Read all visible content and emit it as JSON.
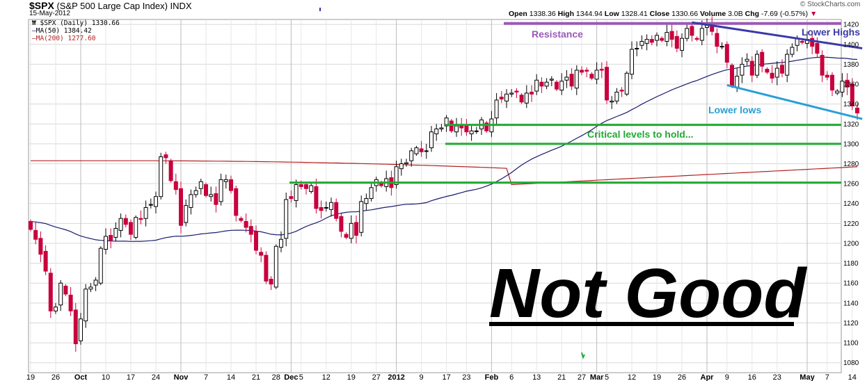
{
  "header": {
    "symbol": "$SPX",
    "name": "(S&P 500 Large Cap Index)",
    "exchange": "INDX",
    "date": "15-May-2012",
    "source": "© StockCharts.com",
    "ohlc": {
      "open_label": "Open",
      "open": "1338.36",
      "high_label": "High",
      "high": "1344.94",
      "low_label": "Low",
      "low": "1328.41",
      "close_label": "Close",
      "close": "1330.66",
      "volume_label": "Volume",
      "volume": "3.0B",
      "chg_label": "Chg",
      "chg": "-7.69 (-0.57%)"
    }
  },
  "legend": {
    "price": "$SPX (Daily) 1330.66",
    "ma50": "MA(50) 1384.42",
    "ma200": "MA(200) 1277.60"
  },
  "annotations": {
    "resistance": "Resistance",
    "lower_highs": "Lower Highs",
    "lower_lows": "Lower lows",
    "critical": "Critical levels to hold...",
    "verdict": "Not Good"
  },
  "colors": {
    "up": "#000000",
    "down": "#c8003c",
    "ma50": "#1a1a6e",
    "ma200": "#b22222",
    "resistance": "#9b59b6",
    "lower_highs": "#3a3aa8",
    "lower_lows": "#2a9fd6",
    "critical": "#22aa33",
    "grid": "#d8d8d8"
  },
  "chart_data": {
    "type": "candlestick",
    "y_axis": {
      "min": 1070,
      "max": 1425,
      "ticks": [
        1080,
        1100,
        1120,
        1140,
        1160,
        1180,
        1200,
        1220,
        1240,
        1260,
        1280,
        1300,
        1320,
        1340,
        1360,
        1380,
        1400,
        1420
      ]
    },
    "x_axis_labels": [
      {
        "label": "19",
        "bold": false,
        "i": 0
      },
      {
        "label": "26",
        "bold": false,
        "i": 5
      },
      {
        "label": "Oct",
        "bold": true,
        "i": 10
      },
      {
        "label": "10",
        "bold": false,
        "i": 15
      },
      {
        "label": "17",
        "bold": false,
        "i": 20
      },
      {
        "label": "24",
        "bold": false,
        "i": 25
      },
      {
        "label": "Nov",
        "bold": true,
        "i": 30
      },
      {
        "label": "7",
        "bold": false,
        "i": 35
      },
      {
        "label": "14",
        "bold": false,
        "i": 40
      },
      {
        "label": "21",
        "bold": false,
        "i": 45
      },
      {
        "label": "28",
        "bold": false,
        "i": 49
      },
      {
        "label": "Dec",
        "bold": true,
        "i": 52
      },
      {
        "label": "5",
        "bold": false,
        "i": 54
      },
      {
        "label": "12",
        "bold": false,
        "i": 59
      },
      {
        "label": "19",
        "bold": false,
        "i": 64
      },
      {
        "label": "27",
        "bold": false,
        "i": 69
      },
      {
        "label": "2012",
        "bold": true,
        "i": 73
      },
      {
        "label": "9",
        "bold": false,
        "i": 78
      },
      {
        "label": "17",
        "bold": false,
        "i": 83
      },
      {
        "label": "23",
        "bold": false,
        "i": 87
      },
      {
        "label": "Feb",
        "bold": true,
        "i": 92
      },
      {
        "label": "6",
        "bold": false,
        "i": 96
      },
      {
        "label": "13",
        "bold": false,
        "i": 101
      },
      {
        "label": "21",
        "bold": false,
        "i": 106
      },
      {
        "label": "27",
        "bold": false,
        "i": 110
      },
      {
        "label": "Mar",
        "bold": true,
        "i": 113
      },
      {
        "label": "5",
        "bold": false,
        "i": 115
      },
      {
        "label": "12",
        "bold": false,
        "i": 120
      },
      {
        "label": "19",
        "bold": false,
        "i": 125
      },
      {
        "label": "26",
        "bold": false,
        "i": 130
      },
      {
        "label": "Apr",
        "bold": true,
        "i": 135
      },
      {
        "label": "9",
        "bold": false,
        "i": 139
      },
      {
        "label": "16",
        "bold": false,
        "i": 144
      },
      {
        "label": "23",
        "bold": false,
        "i": 149
      },
      {
        "label": "May",
        "bold": true,
        "i": 155
      },
      {
        "label": "7",
        "bold": false,
        "i": 159
      },
      {
        "label": "14",
        "bold": false,
        "i": 164
      }
    ],
    "major_gridlines_at": [
      10,
      30,
      52,
      73,
      92,
      113,
      135,
      155
    ],
    "levels": {
      "resistance": 1421,
      "critical": [
        1319,
        1300,
        1261
      ]
    },
    "trendlines": {
      "lower_highs": {
        "from": {
          "i": 132,
          "y": 1422
        },
        "to": {
          "i": 166,
          "y": 1396
        }
      },
      "lower_lows": {
        "from": {
          "i": 139,
          "y": 1359
        },
        "to": {
          "i": 166,
          "y": 1325
        }
      }
    },
    "closes": [
      1214,
      1204,
      1189,
      1172,
      1132,
      1136,
      1160,
      1149,
      1132,
      1099,
      1124,
      1154,
      1156,
      1163,
      1195,
      1207,
      1203,
      1215,
      1225,
      1219,
      1209,
      1226,
      1224,
      1236,
      1239,
      1247,
      1287,
      1286,
      1263,
      1254,
      1218,
      1238,
      1249,
      1253,
      1262,
      1248,
      1249,
      1239,
      1264,
      1264,
      1253,
      1228,
      1223,
      1216,
      1209,
      1193,
      1188,
      1162,
      1159,
      1197,
      1204,
      1244,
      1245,
      1259,
      1257,
      1255,
      1258,
      1235,
      1233,
      1236,
      1241,
      1225,
      1212,
      1206,
      1220,
      1208,
      1242,
      1245,
      1256,
      1264,
      1258,
      1265,
      1256,
      1277,
      1280,
      1281,
      1293,
      1296,
      1292,
      1293,
      1312,
      1315,
      1316,
      1326,
      1313,
      1318,
      1316,
      1312,
      1313,
      1313,
      1324,
      1313,
      1325,
      1344,
      1345,
      1350,
      1351,
      1352,
      1342,
      1351,
      1350,
      1364,
      1358,
      1362,
      1365,
      1355,
      1363,
      1367,
      1358,
      1374,
      1372,
      1373,
      1366,
      1374,
      1374,
      1344,
      1343,
      1352,
      1353,
      1371,
      1395,
      1396,
      1403,
      1405,
      1402,
      1409,
      1404,
      1412,
      1405,
      1396,
      1406,
      1416,
      1409,
      1405,
      1416,
      1419,
      1413,
      1398,
      1398,
      1382,
      1358,
      1368,
      1380,
      1385,
      1369,
      1390,
      1378,
      1372,
      1366,
      1376,
      1371,
      1390,
      1397,
      1406,
      1402,
      1405,
      1398,
      1391,
      1369,
      1367,
      1354,
      1353,
      1363,
      1357,
      1338,
      1331
    ]
  }
}
